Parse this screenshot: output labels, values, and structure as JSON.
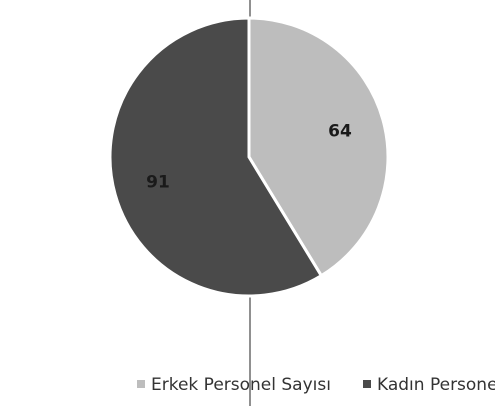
{
  "chart_data": {
    "type": "pie",
    "categories": [
      "Erkek Personel Sayısı",
      "Kadın Personel Sayısı"
    ],
    "values": [
      64,
      91
    ],
    "colors": [
      "#bdbdbd",
      "#4a4a4a"
    ]
  }
}
